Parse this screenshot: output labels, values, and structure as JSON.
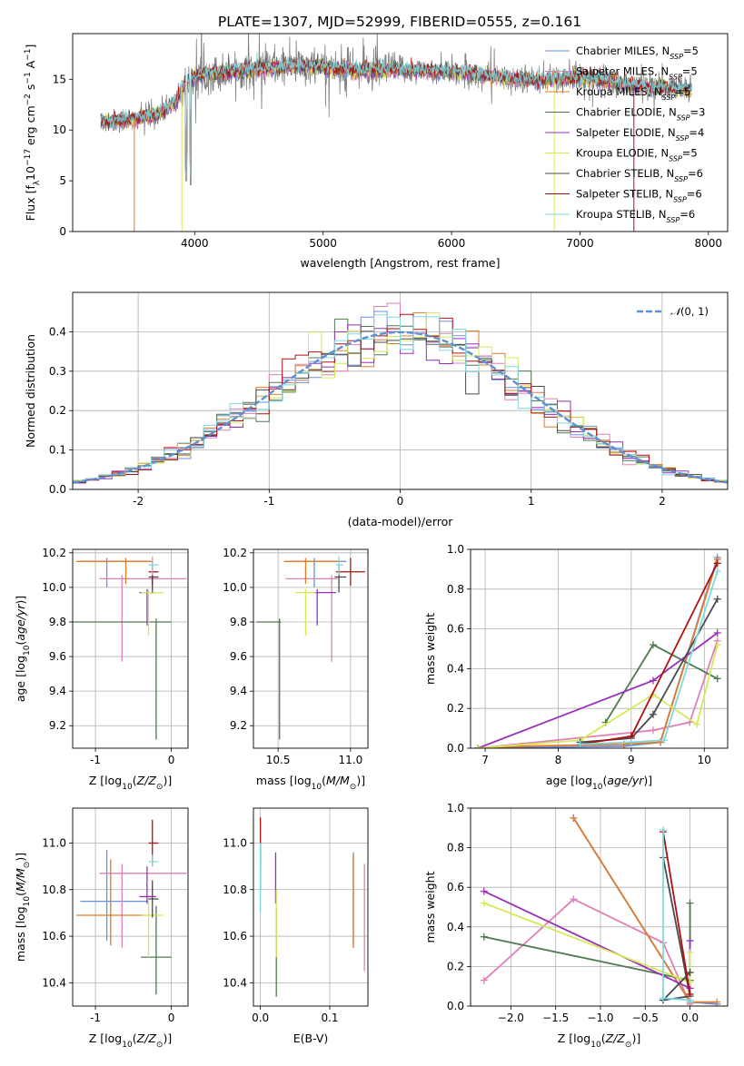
{
  "figure": {
    "title": "PLATE=1307, MJD=52999, FIBERID=0555, z=0.161"
  },
  "colors": {
    "Chabrier MILES": "#6b8fe0",
    "Salpeter MILES": "#e07fb8",
    "Kroupa MILES": "#e07b2a",
    "Chabrier ELODIE": "#4f7a4f",
    "Salpeter ELODIE": "#9a2fb8",
    "Kroupa ELODIE": "#d4ea55",
    "Chabrier STELIB": "#4a4a4a",
    "Salpeter STELIB": "#b01010",
    "Kroupa STELIB": "#7fd8df",
    "data": "#808080",
    "normal": "#5b8fd8"
  },
  "legend_entries": [
    {
      "label": "Chabrier MILES, N",
      "sub": "SSP",
      "tail": "=5",
      "key": "Chabrier MILES"
    },
    {
      "label": "Salpeter MILES, N",
      "sub": "SSP",
      "tail": "=5",
      "key": "Salpeter MILES"
    },
    {
      "label": "Kroupa MILES, N",
      "sub": "SSP",
      "tail": "=5",
      "key": "Kroupa MILES"
    },
    {
      "label": "Chabrier ELODIE, N",
      "sub": "SSP",
      "tail": "=3",
      "key": "Chabrier ELODIE"
    },
    {
      "label": "Salpeter ELODIE, N",
      "sub": "SSP",
      "tail": "=4",
      "key": "Salpeter ELODIE"
    },
    {
      "label": "Kroupa ELODIE, N",
      "sub": "SSP",
      "tail": "=5",
      "key": "Kroupa ELODIE"
    },
    {
      "label": "Chabrier STELIB, N",
      "sub": "SSP",
      "tail": "=6",
      "key": "Chabrier STELIB"
    },
    {
      "label": "Salpeter STELIB, N",
      "sub": "SSP",
      "tail": "=6",
      "key": "Salpeter STELIB"
    },
    {
      "label": "Kroupa STELIB, N",
      "sub": "SSP",
      "tail": "=6",
      "key": "Kroupa STELIB"
    }
  ],
  "chart_data": [
    {
      "id": "spectrum",
      "type": "line",
      "title": "PLATE=1307, MJD=52999, FIBERID=0555, z=0.161",
      "xlabel": "wavelength [Angstrom, rest frame]",
      "ylabel": "Flux [f_λ10^-17 erg cm^-2 s^-1 A^-1]",
      "xlim": [
        3050,
        8150
      ],
      "ylim": [
        0,
        19.5
      ],
      "xticks": [
        4000,
        5000,
        6000,
        7000,
        8000
      ],
      "yticks": [
        0,
        5,
        10,
        15
      ],
      "legend_position": "right",
      "continuum": {
        "x": [
          3270,
          3500,
          3700,
          3860,
          3900,
          4000,
          4100,
          4300,
          4500,
          4800,
          5000,
          5300,
          5600,
          5900,
          6200,
          6500,
          6800,
          7000,
          7200,
          7500,
          7850
        ],
        "y": [
          10.8,
          11.0,
          11.5,
          12.8,
          14.2,
          15.2,
          15.6,
          15.8,
          16.0,
          16.3,
          16.2,
          15.9,
          15.9,
          15.8,
          15.5,
          15.0,
          15.0,
          15.2,
          14.9,
          14.3,
          14.0
        ]
      },
      "absorption_features": [
        {
          "x": 3934,
          "y": 5.0
        },
        {
          "x": 3969,
          "y": 4.5
        },
        {
          "x": 3900,
          "y": 0.0
        },
        {
          "x": 3530,
          "y": 0.0
        },
        {
          "x": 6800,
          "y": 0.0
        },
        {
          "x": 7420,
          "y": 0.0
        }
      ]
    },
    {
      "id": "residuals",
      "type": "bar",
      "xlabel": "(data-model)/error",
      "ylabel": "Normed distribution",
      "xlim": [
        -2.5,
        2.5
      ],
      "ylim": [
        0,
        0.5
      ],
      "xticks": [
        -2,
        -1,
        0,
        1,
        2
      ],
      "yticks": [
        0.0,
        0.1,
        0.2,
        0.3,
        0.4
      ],
      "legend_position": "top-right",
      "normal_label": "N(0,1)",
      "bin_width": 0.1
    },
    {
      "id": "age_vs_Z",
      "type": "scatter",
      "xlabel": "Z [log10(Z/Z⊙)]",
      "ylabel": "age [log10(age/yr)]",
      "xlim": [
        -1.3,
        0.22
      ],
      "ylim": [
        9.07,
        10.22
      ],
      "xticks": [
        -1,
        0
      ],
      "yticks": [
        9.2,
        9.4,
        9.6,
        9.8,
        10.0,
        10.2
      ],
      "points": [
        {
          "key": "Chabrier MILES",
          "x": -0.85,
          "y": 10.15,
          "xerr": [
            0.35,
            0.55
          ],
          "yerr": [
            0.15,
            0.02
          ]
        },
        {
          "key": "Salpeter MILES",
          "x": -0.65,
          "y": 10.05,
          "xerr": [
            0.3,
            0.85
          ],
          "yerr": [
            0.48,
            0.02
          ]
        },
        {
          "key": "Kroupa MILES",
          "x": -0.6,
          "y": 10.15,
          "xerr": [
            0.65,
            0.35
          ],
          "yerr": [
            0.13,
            0.02
          ]
        },
        {
          "key": "Chabrier ELODIE",
          "x": -0.2,
          "y": 9.8,
          "xerr": [
            1.1,
            0.2
          ],
          "yerr": [
            0.68,
            0.02
          ]
        },
        {
          "key": "Salpeter ELODIE",
          "x": -0.32,
          "y": 9.97,
          "xerr": [
            0.1,
            0.12
          ],
          "yerr": [
            0.19,
            0.02
          ]
        },
        {
          "key": "Kroupa ELODIE",
          "x": -0.3,
          "y": 9.97,
          "xerr": [
            0.1,
            0.2
          ],
          "yerr": [
            0.25,
            0.02
          ]
        },
        {
          "key": "Chabrier STELIB",
          "x": -0.25,
          "y": 10.06,
          "xerr": [
            0.05,
            0.08
          ],
          "yerr": [
            0.09,
            0.07
          ]
        },
        {
          "key": "Salpeter STELIB",
          "x": -0.25,
          "y": 10.09,
          "xerr": [
            0.05,
            0.08
          ],
          "yerr": [
            0.08,
            0.08
          ]
        },
        {
          "key": "Kroupa STELIB",
          "x": -0.25,
          "y": 10.13,
          "xerr": [
            0.05,
            0.08
          ],
          "yerr": [
            0.06,
            0.05
          ]
        }
      ]
    },
    {
      "id": "age_vs_mass",
      "type": "scatter",
      "xlabel": "mass [log10(M/M⊙)]",
      "ylabel": "",
      "xlim": [
        10.33,
        11.12
      ],
      "ylim": [
        9.07,
        10.22
      ],
      "xticks": [
        10.5,
        11.0
      ],
      "yticks": [
        9.2,
        9.4,
        9.6,
        9.8,
        10.0,
        10.2
      ],
      "points": [
        {
          "key": "Chabrier MILES",
          "x": 10.75,
          "y": 10.15,
          "xerr": [
            0.17,
            0.22
          ],
          "yerr": [
            0.15,
            0.02
          ]
        },
        {
          "key": "Salpeter MILES",
          "x": 10.87,
          "y": 10.05,
          "xerr": [
            0.32,
            0.04
          ],
          "yerr": [
            0.48,
            0.02
          ]
        },
        {
          "key": "Kroupa MILES",
          "x": 10.69,
          "y": 10.15,
          "xerr": [
            0.15,
            0.24
          ],
          "yerr": [
            0.13,
            0.02
          ]
        },
        {
          "key": "Chabrier ELODIE",
          "x": 10.51,
          "y": 9.8,
          "xerr": [
            0.16,
            0.01
          ],
          "yerr": [
            0.68,
            0.02
          ]
        },
        {
          "key": "Salpeter ELODIE",
          "x": 10.77,
          "y": 9.97,
          "xerr": [
            0.03,
            0.13
          ],
          "yerr": [
            0.19,
            0.02
          ]
        },
        {
          "key": "Kroupa ELODIE",
          "x": 10.69,
          "y": 9.97,
          "xerr": [
            0.07,
            0.07
          ],
          "yerr": [
            0.25,
            0.02
          ]
        },
        {
          "key": "Chabrier STELIB",
          "x": 10.92,
          "y": 10.06,
          "xerr": [
            0.03,
            0.05
          ],
          "yerr": [
            0.09,
            0.07
          ]
        },
        {
          "key": "Salpeter STELIB",
          "x": 11.0,
          "y": 10.09,
          "xerr": [
            0.1,
            0.1
          ],
          "yerr": [
            0.08,
            0.08
          ]
        },
        {
          "key": "Kroupa STELIB",
          "x": 10.92,
          "y": 10.13,
          "xerr": [
            0.02,
            0.03
          ],
          "yerr": [
            0.06,
            0.05
          ]
        }
      ]
    },
    {
      "id": "weight_vs_age",
      "type": "line",
      "xlabel": "age [log10(age/yr)]",
      "ylabel": "mass weight",
      "xlim": [
        6.8,
        10.32
      ],
      "ylim": [
        0,
        1.0
      ],
      "xticks": [
        7,
        8,
        9,
        10
      ],
      "yticks": [
        0.0,
        0.2,
        0.4,
        0.6,
        0.8,
        1.0
      ],
      "series": [
        {
          "key": "Chabrier MILES",
          "x": [
            6.9,
            8.9,
            9.4,
            10.18
          ],
          "y": [
            0.0,
            0.01,
            0.03,
            0.96
          ]
        },
        {
          "key": "Salpeter MILES",
          "x": [
            6.9,
            9.3,
            9.8,
            10.18
          ],
          "y": [
            0.0,
            0.09,
            0.13,
            0.54
          ]
        },
        {
          "key": "Kroupa MILES",
          "x": [
            6.9,
            7.5,
            8.9,
            9.4,
            10.18
          ],
          "y": [
            0.0,
            0.01,
            0.02,
            0.03,
            0.95
          ]
        },
        {
          "key": "Chabrier ELODIE",
          "x": [
            8.65,
            9.3,
            10.18
          ],
          "y": [
            0.13,
            0.52,
            0.35
          ]
        },
        {
          "key": "Salpeter ELODIE",
          "x": [
            6.9,
            9.3,
            10.18
          ],
          "y": [
            0.0,
            0.34,
            0.58
          ]
        },
        {
          "key": "Kroupa ELODIE",
          "x": [
            6.9,
            8.3,
            9.3,
            9.9,
            10.18
          ],
          "y": [
            0.0,
            0.04,
            0.27,
            0.12,
            0.52
          ]
        },
        {
          "key": "Chabrier STELIB",
          "x": [
            8.3,
            9.0,
            9.3,
            10.18
          ],
          "y": [
            0.03,
            0.05,
            0.17,
            0.75
          ]
        },
        {
          "key": "Salpeter STELIB",
          "x": [
            8.3,
            9.0,
            10.18
          ],
          "y": [
            0.02,
            0.06,
            0.93
          ]
        },
        {
          "key": "Kroupa STELIB",
          "x": [
            8.3,
            9.0,
            9.45,
            10.18
          ],
          "y": [
            0.02,
            0.03,
            0.04,
            0.89
          ]
        }
      ]
    },
    {
      "id": "mass_vs_Z",
      "type": "scatter",
      "xlabel": "Z [log10(Z/Z⊙)]",
      "ylabel": "mass [log10(M/M⊙)]",
      "xlim": [
        -1.3,
        0.22
      ],
      "ylim": [
        10.3,
        11.15
      ],
      "xticks": [
        -1,
        0
      ],
      "yticks": [
        10.4,
        10.6,
        10.8,
        11.0
      ],
      "points": [
        {
          "key": "Chabrier MILES",
          "x": -0.85,
          "y": 10.75,
          "xerr": [
            0.35,
            0.55
          ],
          "yerr": [
            0.17,
            0.22
          ]
        },
        {
          "key": "Salpeter MILES",
          "x": -0.65,
          "y": 10.87,
          "xerr": [
            0.3,
            0.85
          ],
          "yerr": [
            0.32,
            0.04
          ]
        },
        {
          "key": "Kroupa MILES",
          "x": -0.8,
          "y": 10.69,
          "xerr": [
            0.45,
            0.6
          ],
          "yerr": [
            0.13,
            0.24
          ]
        },
        {
          "key": "Chabrier ELODIE",
          "x": -0.2,
          "y": 10.51,
          "xerr": [
            0.2,
            0.2
          ],
          "yerr": [
            0.16,
            0.22
          ]
        },
        {
          "key": "Salpeter ELODIE",
          "x": -0.32,
          "y": 10.77,
          "xerr": [
            0.1,
            0.12
          ],
          "yerr": [
            0.03,
            0.13
          ]
        },
        {
          "key": "Kroupa ELODIE",
          "x": -0.3,
          "y": 10.69,
          "xerr": [
            0.1,
            0.2
          ],
          "yerr": [
            0.18,
            0.07
          ]
        },
        {
          "key": "Chabrier STELIB",
          "x": -0.25,
          "y": 10.76,
          "xerr": [
            0.05,
            0.08
          ],
          "yerr": [
            0.08,
            0.08
          ]
        },
        {
          "key": "Salpeter STELIB",
          "x": -0.25,
          "y": 11.0,
          "xerr": [
            0.05,
            0.08
          ],
          "yerr": [
            0.1,
            0.1
          ]
        },
        {
          "key": "Kroupa STELIB",
          "x": -0.25,
          "y": 10.92,
          "xerr": [
            0.05,
            0.08
          ],
          "yerr": [
            0.02,
            0.03
          ]
        }
      ]
    },
    {
      "id": "mass_vs_ebv",
      "type": "scatter",
      "xlabel": "E(B-V)",
      "ylabel": "",
      "xlim": [
        -0.01,
        0.155
      ],
      "ylim": [
        10.3,
        11.15
      ],
      "xticks": [
        0.0,
        0.1
      ],
      "yticks": [
        10.4,
        10.6,
        10.8,
        11.0
      ],
      "points": [
        {
          "key": "Chabrier MILES",
          "x": 0.134,
          "y": 10.8,
          "yerr": [
            0.24,
            0.16
          ]
        },
        {
          "key": "Salpeter MILES",
          "x": 0.15,
          "y": 10.7,
          "yerr": [
            0.25,
            0.21
          ]
        },
        {
          "key": "Kroupa MILES",
          "x": 0.134,
          "y": 10.75,
          "yerr": [
            0.2,
            0.2
          ]
        },
        {
          "key": "Chabrier ELODIE",
          "x": 0.023,
          "y": 10.5,
          "yerr": [
            0.16,
            0.22
          ]
        },
        {
          "key": "Salpeter ELODIE",
          "x": 0.022,
          "y": 10.77,
          "yerr": [
            0.03,
            0.19
          ]
        },
        {
          "key": "Kroupa ELODIE",
          "x": 0.023,
          "y": 10.69,
          "yerr": [
            0.18,
            0.11
          ]
        },
        {
          "key": "Chabrier STELIB",
          "x": 0.0,
          "y": 10.9,
          "yerr": [
            0.1,
            0.1
          ]
        },
        {
          "key": "Salpeter STELIB",
          "x": 0.0,
          "y": 11.0,
          "yerr": [
            0.1,
            0.11
          ]
        },
        {
          "key": "Kroupa STELIB",
          "x": 0.0,
          "y": 10.85,
          "yerr": [
            0.15,
            0.15
          ]
        }
      ]
    },
    {
      "id": "weight_vs_Z",
      "type": "line",
      "xlabel": "Z [log10(Z/Z⊙)]",
      "ylabel": "mass weight",
      "xlim": [
        -2.45,
        0.42
      ],
      "ylim": [
        0,
        1.0
      ],
      "xticks": [
        -2.0,
        -1.5,
        -1.0,
        -0.5,
        0.0
      ],
      "yticks": [
        0.0,
        0.2,
        0.4,
        0.6,
        0.8,
        1.0
      ],
      "series": [
        {
          "key": "Chabrier MILES",
          "x": [
            -1.3,
            0.0,
            0.3
          ],
          "y": [
            0.95,
            0.02,
            0.01
          ]
        },
        {
          "key": "Salpeter MILES",
          "x": [
            -2.3,
            -1.3,
            -0.3,
            0.0
          ],
          "y": [
            0.13,
            0.54,
            0.32,
            0.01
          ]
        },
        {
          "key": "Kroupa MILES",
          "x": [
            -1.3,
            0.0,
            0.3
          ],
          "y": [
            0.95,
            0.02,
            0.02
          ]
        },
        {
          "key": "Chabrier ELODIE",
          "x": [
            -2.3,
            0.0,
            0.0
          ],
          "y": [
            0.35,
            0.13,
            0.52
          ]
        },
        {
          "key": "Salpeter ELODIE",
          "x": [
            -2.3,
            0.0,
            0.0
          ],
          "y": [
            0.58,
            0.09,
            0.33
          ]
        },
        {
          "key": "Kroupa ELODIE",
          "x": [
            -2.3,
            0.0,
            0.0
          ],
          "y": [
            0.52,
            0.12,
            0.27
          ]
        },
        {
          "key": "Chabrier STELIB",
          "x": [
            -0.3,
            0.0,
            -0.3,
            0.0
          ],
          "y": [
            0.75,
            0.05,
            0.03,
            0.17
          ]
        },
        {
          "key": "Salpeter STELIB",
          "x": [
            -0.3,
            0.0,
            0.0
          ],
          "y": [
            0.88,
            0.06,
            0.02
          ]
        },
        {
          "key": "Kroupa STELIB",
          "x": [
            -0.3,
            -0.3,
            0.0,
            0.0
          ],
          "y": [
            0.89,
            0.04,
            0.03,
            0.02
          ]
        }
      ]
    }
  ]
}
